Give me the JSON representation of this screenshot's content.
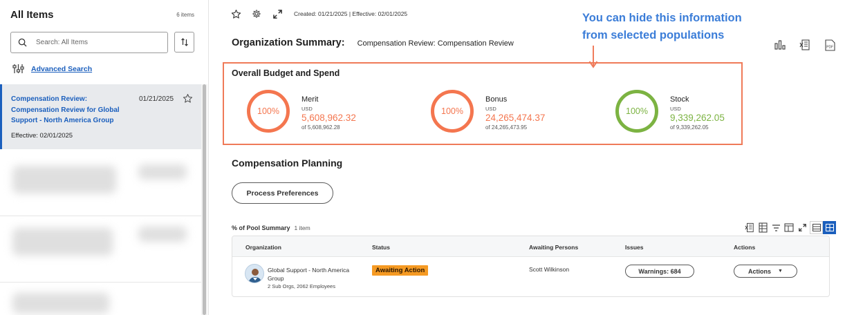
{
  "left": {
    "title": "All Items",
    "count": "6 items",
    "search_placeholder": "Search: All Items",
    "advanced_search": "Advanced Search",
    "selected_item": {
      "title": "Compensation Review: Compensation Review for Global Support - North America Group",
      "date": "01/21/2025",
      "effective": "Effective: 02/01/2025"
    }
  },
  "header": {
    "meta": "Created: 01/21/2025 | Effective: 02/01/2025",
    "org_label": "Organization Summary:",
    "org_value": "Compensation Review: Compensation Review"
  },
  "annotation": {
    "line1": "You can hide this information",
    "line2": "from selected populations",
    "color": "#3b7dd8"
  },
  "budget": {
    "title": "Overall Budget and Spend",
    "metrics": [
      {
        "name": "Merit",
        "currency": "USD",
        "value": "5,608,962.32",
        "of": "of 5,608,962.28",
        "percent": "100%",
        "color": "#f4764f"
      },
      {
        "name": "Bonus",
        "currency": "USD",
        "value": "24,265,474.37",
        "of": "of 24,265,473.95",
        "percent": "100%",
        "color": "#f4764f"
      },
      {
        "name": "Stock",
        "currency": "USD",
        "value": "9,339,262.05",
        "of": "of 9,339,262.05",
        "percent": "100%",
        "color": "#7cb342"
      }
    ]
  },
  "planning": {
    "title": "Compensation Planning",
    "process_button": "Process Preferences"
  },
  "pool": {
    "label": "% of Pool Summary",
    "count": "1 item",
    "columns": [
      "Organization",
      "Status",
      "Awaiting Persons",
      "Issues",
      "Actions"
    ],
    "row": {
      "org_name": "Global Support - North America Group",
      "org_sub": "2 Sub Orgs, 2062 Employees",
      "status": "Awaiting Action",
      "awaiting": "Scott Wilkinson",
      "issues": "Warnings: 684",
      "actions": "Actions"
    }
  },
  "colors": {
    "accent": "#1b5fbd",
    "highlight_box": "#ef7a58",
    "status_badge": "#f59a23"
  }
}
